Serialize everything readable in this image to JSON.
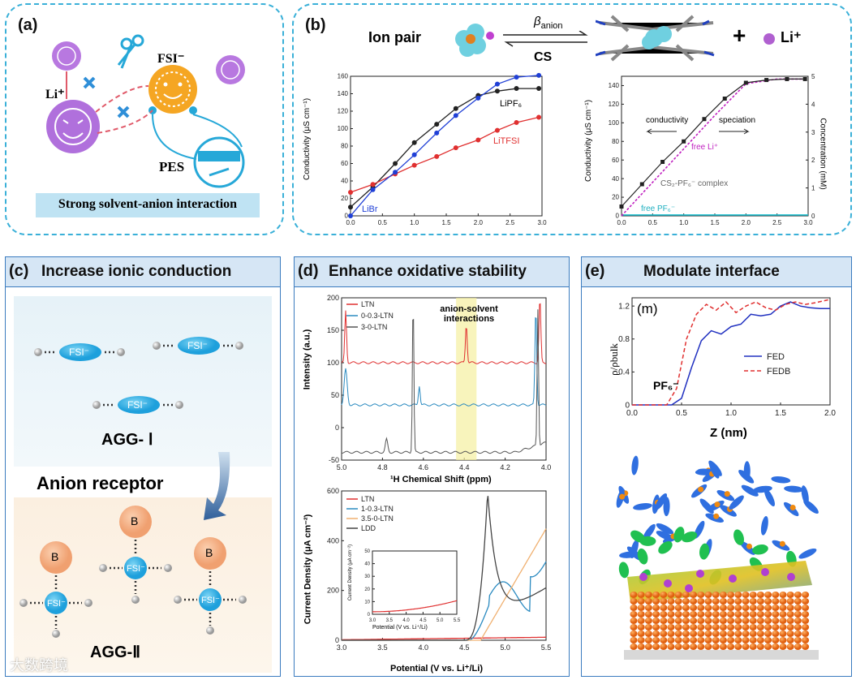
{
  "panel_a": {
    "label": "(a)",
    "li": "Li⁺",
    "fsi": "FSI⁻",
    "pes": "PES",
    "caption": "Strong solvent-anion interaction"
  },
  "panel_b": {
    "label": "(b)",
    "ion_pair": "Ion pair",
    "beta": "β",
    "beta_sub": "anion",
    "cs": "CS",
    "plus": "+",
    "li": "Li⁺",
    "left_plot": {
      "ylabel": "Conductivity (μS cm⁻¹)",
      "series_labels": [
        "LiPF₆",
        "LiTFSI",
        "LiBr"
      ]
    },
    "right_plot": {
      "ylabel_left": "Conductivity (μS cm⁻¹)",
      "ylabel_right": "Concentration (mM)",
      "ann_conductivity": "conductivity",
      "ann_speciation": "speciation",
      "ann_freeli": "free Li⁺",
      "ann_complex": "CS₂-PF₆⁻ complex",
      "ann_freepf6": "free PF₆⁻"
    }
  },
  "panel_c": {
    "label": "(c)",
    "title": "Increase ionic conduction",
    "fsi": "FSI⁻",
    "agg1": "AGG- Ⅰ",
    "receptor": "Anion receptor",
    "b": "B",
    "agg2": "AGG-Ⅱ"
  },
  "panel_d": {
    "label": "(d)",
    "title": "Enhance oxidative stability",
    "nmr": {
      "ylabel": "Intensity (a.u.)",
      "xlabel": "¹H Chemical Shift (ppm)",
      "legend": [
        "LTN",
        "0-0.3-LTN",
        "3-0-LTN"
      ],
      "annotation": "anion-solvent interactions"
    },
    "lsv": {
      "ylabel": "Current Density (μA cm⁻²)",
      "xlabel": "Potential (V vs. Li⁺/Li)",
      "legend": [
        "LTN",
        "1-0.3-LTN",
        "3.5-0-LTN",
        "LDD"
      ],
      "inset_ylabel": "Current Density (μA cm⁻²)",
      "inset_xlabel": "Potential (V vs. Li⁺/Li)"
    }
  },
  "panel_e": {
    "label": "(e)",
    "title": "Modulate interface",
    "plot": {
      "tag": "(m)",
      "ylabel": "ρ/ρbulk",
      "xlabel": "Z (nm)",
      "pf6": "PF₆⁻",
      "legend": [
        "FED",
        "FEDB"
      ]
    }
  },
  "watermark": "大数跨境",
  "colors": {
    "blue": "#1f3fd6",
    "red": "#e03030",
    "black": "#222222",
    "magenta": "#c020c0",
    "cyan": "#20c0d0",
    "orange": "#f5a623",
    "accent": "#3ab0d8"
  },
  "chart_data": [
    {
      "id": "b_left",
      "type": "line",
      "xlim": [
        0,
        3
      ],
      "ylim": [
        0,
        160
      ],
      "xticks": [
        0.0,
        0.5,
        1.0,
        1.5,
        2.0,
        2.5,
        3.0
      ],
      "yticks": [
        0,
        20,
        40,
        60,
        80,
        100,
        120,
        140,
        160
      ],
      "series": [
        {
          "name": "LiPF₆",
          "color": "#222222",
          "x": [
            0,
            0.35,
            0.7,
            1.0,
            1.35,
            1.65,
            2.0,
            2.3,
            2.6,
            2.95
          ],
          "y": [
            10,
            33,
            60,
            84,
            105,
            123,
            138,
            143,
            146,
            146
          ]
        },
        {
          "name": "LiTFSI",
          "color": "#e03030",
          "x": [
            0,
            0.35,
            0.7,
            1.0,
            1.35,
            1.65,
            2.0,
            2.3,
            2.6,
            2.95
          ],
          "y": [
            27,
            36,
            48,
            58,
            68,
            78,
            87,
            98,
            107,
            113
          ]
        },
        {
          "name": "LiBr",
          "color": "#1f3fd6",
          "x": [
            0,
            0.35,
            0.7,
            1.0,
            1.35,
            1.65,
            2.0,
            2.3,
            2.6,
            2.95
          ],
          "y": [
            0,
            30,
            50,
            70,
            95,
            115,
            135,
            151,
            159,
            161
          ]
        }
      ]
    },
    {
      "id": "b_right",
      "type": "line",
      "xlim": [
        0,
        3
      ],
      "ylim": [
        0,
        150
      ],
      "y2lim": [
        0,
        5
      ],
      "xticks": [
        0.0,
        0.5,
        1.0,
        1.5,
        2.0,
        2.5,
        3.0
      ],
      "yticks": [
        0,
        20,
        40,
        60,
        80,
        100,
        120,
        140
      ],
      "y2ticks": [
        0,
        1,
        2,
        3,
        4,
        5
      ],
      "series": [
        {
          "name": "conductivity",
          "color": "#222222",
          "x": [
            0,
            0.33,
            0.66,
            1.0,
            1.33,
            1.66,
            2.0,
            2.33,
            2.66,
            2.95
          ],
          "y": [
            10,
            34,
            58,
            80,
            104,
            126,
            143,
            146,
            147,
            147
          ]
        },
        {
          "name": "free Li⁺",
          "color": "#c020c0",
          "x": [
            0,
            0.5,
            1.0,
            1.5,
            2.0,
            2.5,
            2.95
          ],
          "y": [
            0,
            36,
            72,
            108,
            142,
            147,
            147
          ]
        },
        {
          "name": "free PF₆⁻",
          "color": "#20c0d0",
          "x": [
            0,
            3.0
          ],
          "y": [
            1,
            1
          ]
        }
      ]
    },
    {
      "id": "d_nmr",
      "type": "line",
      "xlim": [
        5.0,
        4.0
      ],
      "ylim": [
        -50,
        200
      ],
      "xticks": [
        5.0,
        4.8,
        4.6,
        4.4,
        4.2,
        4.0
      ],
      "yticks": [
        -50,
        0,
        50,
        100,
        150,
        200
      ],
      "series": [
        {
          "name": "LTN",
          "color": "#e03030",
          "baseline": 100
        },
        {
          "name": "0-0.3-LTN",
          "color": "#2a8ac0",
          "baseline": 35
        },
        {
          "name": "3-0-LTN",
          "color": "#555555",
          "baseline": -38
        }
      ]
    },
    {
      "id": "d_lsv",
      "type": "line",
      "xlim": [
        3.0,
        5.5
      ],
      "ylim": [
        0,
        600
      ],
      "xticks": [
        3.0,
        3.5,
        4.0,
        4.5,
        5.0,
        5.5
      ],
      "yticks": [
        0,
        200,
        400,
        600
      ],
      "series": [
        {
          "name": "LTN",
          "color": "#e03030"
        },
        {
          "name": "1-0.3-LTN",
          "color": "#2a8ac0"
        },
        {
          "name": "3.5-0-LTN",
          "color": "#f0b070"
        },
        {
          "name": "LDD",
          "color": "#444444"
        }
      ],
      "inset": {
        "xlim": [
          3.0,
          5.5
        ],
        "ylim": [
          0,
          50
        ],
        "xticks": [
          3.0,
          3.5,
          4.0,
          4.5,
          5.0,
          5.5
        ],
        "yticks": [
          0,
          10,
          20,
          30,
          40,
          50
        ]
      }
    },
    {
      "id": "e_density",
      "type": "line",
      "xlim": [
        0,
        2.0
      ],
      "ylim": [
        0,
        1.3
      ],
      "xticks": [
        0.0,
        0.5,
        1.0,
        1.5,
        2.0
      ],
      "yticks": [
        0.0,
        0.4,
        0.8,
        1.2
      ],
      "series": [
        {
          "name": "FED",
          "color": "#2030c0",
          "x": [
            0,
            0.4,
            0.5,
            0.6,
            0.7,
            0.8,
            0.9,
            1.0,
            1.1,
            1.2,
            1.3,
            1.4,
            1.5,
            1.6,
            1.7,
            1.8,
            1.9,
            2.0
          ],
          "y": [
            0,
            0,
            0.08,
            0.45,
            0.78,
            0.9,
            0.86,
            0.95,
            0.98,
            1.1,
            1.08,
            1.1,
            1.2,
            1.25,
            1.2,
            1.18,
            1.17,
            1.17
          ]
        },
        {
          "name": "FEDB",
          "color": "#e03030",
          "x": [
            0,
            0.35,
            0.45,
            0.55,
            0.65,
            0.75,
            0.85,
            0.95,
            1.05,
            1.15,
            1.25,
            1.35,
            1.45,
            1.55,
            1.65,
            1.75,
            1.85,
            2.0
          ],
          "y": [
            0,
            0,
            0.2,
            0.8,
            1.1,
            1.22,
            1.15,
            1.25,
            1.12,
            1.2,
            1.25,
            1.18,
            1.15,
            1.22,
            1.25,
            1.22,
            1.24,
            1.28
          ]
        }
      ]
    }
  ]
}
